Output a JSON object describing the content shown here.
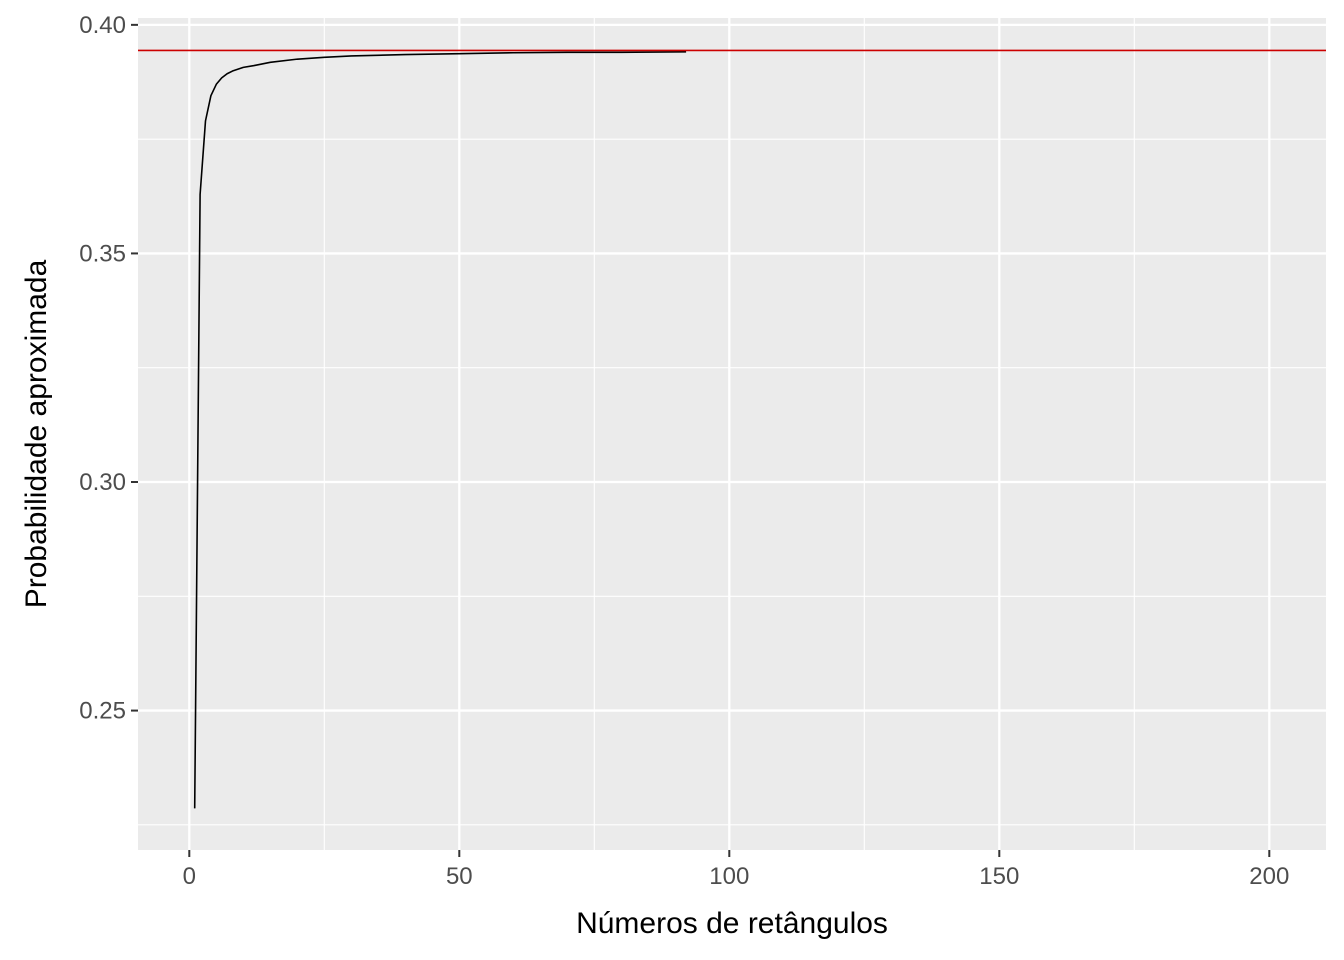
{
  "chart_data": {
    "type": "line",
    "title": "",
    "xlabel": "Números de retângulos",
    "ylabel": "Probabilidade aproximada",
    "xlim": [
      -9.5,
      210.5
    ],
    "ylim": [
      0.2195,
      0.4015
    ],
    "x_ticks": [
      0,
      50,
      100,
      150,
      200
    ],
    "x_tick_labels": [
      "0",
      "50",
      "100",
      "150",
      "200"
    ],
    "y_ticks": [
      0.25,
      0.3,
      0.35,
      0.4
    ],
    "y_tick_labels": [
      "0.25",
      "0.30",
      "0.35",
      "0.40"
    ],
    "grid": true,
    "series": [
      {
        "line_color": "#000000",
        "points": [
          [
            1,
            0.2286
          ],
          [
            2,
            0.3629
          ],
          [
            3,
            0.379
          ],
          [
            4,
            0.3845
          ],
          [
            5,
            0.387
          ],
          [
            6,
            0.3884
          ],
          [
            7,
            0.3893
          ],
          [
            8,
            0.3899
          ],
          [
            10,
            0.3907
          ],
          [
            12,
            0.3911
          ],
          [
            15,
            0.3918
          ],
          [
            20,
            0.3925
          ],
          [
            25,
            0.3929
          ],
          [
            30,
            0.3932
          ],
          [
            40,
            0.3935
          ],
          [
            50,
            0.3937
          ],
          [
            60,
            0.3939
          ],
          [
            70,
            0.394
          ],
          [
            80,
            0.394
          ],
          [
            92,
            0.3941
          ]
        ]
      }
    ],
    "reference_line": {
      "y": 0.3944,
      "color": "#cc0000"
    }
  },
  "colors": {
    "panel_background": "#ebebeb",
    "grid_major": "#ffffff",
    "tick_text": "#4d4d4d",
    "tick_mark": "#333333"
  }
}
